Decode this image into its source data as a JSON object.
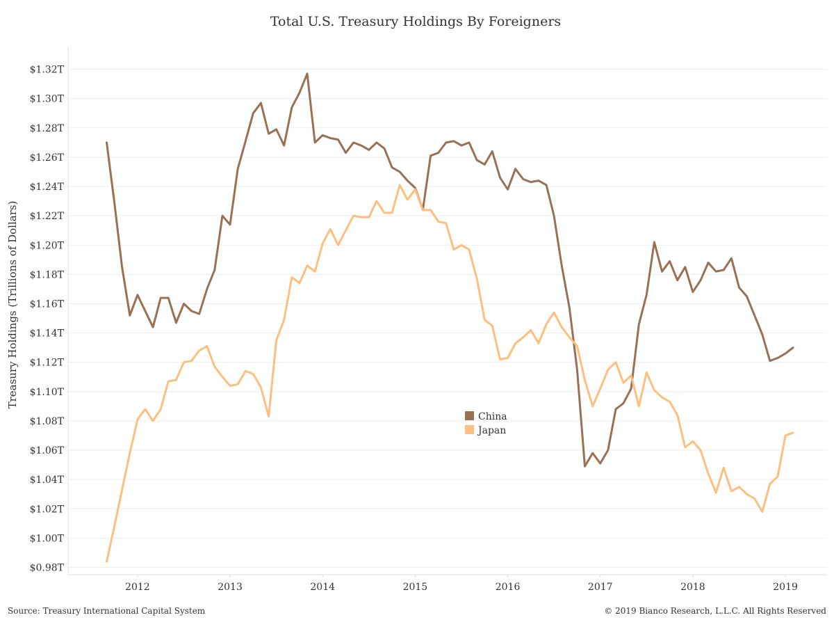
{
  "chart_data": {
    "type": "line",
    "title": "Total U.S. Treasury Holdings By Foreigners",
    "ylabel": "Treasury Holdings (Trillions of Dollars)",
    "xlabel": "",
    "ylim": [
      0.975,
      1.335
    ],
    "xlim": [
      2011.25,
      2019.45
    ],
    "yticks": [
      0.98,
      1.0,
      1.02,
      1.04,
      1.06,
      1.08,
      1.1,
      1.12,
      1.14,
      1.16,
      1.18,
      1.2,
      1.22,
      1.24,
      1.26,
      1.28,
      1.3,
      1.32
    ],
    "ytick_labels": [
      "$0.98T",
      "$1.00T",
      "$1.02T",
      "$1.04T",
      "$1.06T",
      "$1.08T",
      "$1.10T",
      "$1.12T",
      "$1.14T",
      "$1.16T",
      "$1.18T",
      "$1.20T",
      "$1.22T",
      "$1.24T",
      "$1.26T",
      "$1.28T",
      "$1.30T",
      "$1.32T"
    ],
    "xticks": [
      2012,
      2013,
      2014,
      2015,
      2016,
      2017,
      2018,
      2019
    ],
    "xtick_labels": [
      "2012",
      "2013",
      "2014",
      "2015",
      "2016",
      "2017",
      "2018",
      "2019"
    ],
    "grid": true,
    "legend_position": "center",
    "series": [
      {
        "name": "China",
        "color": "#9a7055",
        "x": [
          2011.667,
          2011.75,
          2011.833,
          2011.917,
          2012.0,
          2012.083,
          2012.167,
          2012.25,
          2012.333,
          2012.417,
          2012.5,
          2012.583,
          2012.667,
          2012.75,
          2012.833,
          2012.917,
          2013.0,
          2013.083,
          2013.167,
          2013.25,
          2013.333,
          2013.417,
          2013.5,
          2013.583,
          2013.667,
          2013.75,
          2013.833,
          2013.917,
          2014.0,
          2014.083,
          2014.167,
          2014.25,
          2014.333,
          2014.417,
          2014.5,
          2014.583,
          2014.667,
          2014.75,
          2014.833,
          2014.917,
          2015.0,
          2015.083,
          2015.167,
          2015.25,
          2015.333,
          2015.417,
          2015.5,
          2015.583,
          2015.667,
          2015.75,
          2015.833,
          2015.917,
          2016.0,
          2016.083,
          2016.167,
          2016.25,
          2016.333,
          2016.417,
          2016.5,
          2016.583,
          2016.667,
          2016.75,
          2016.833,
          2016.917,
          2017.0,
          2017.083,
          2017.167,
          2017.25,
          2017.333,
          2017.417,
          2017.5,
          2017.583,
          2017.667,
          2017.75,
          2017.833,
          2017.917,
          2018.0,
          2018.083,
          2018.167,
          2018.25,
          2018.333,
          2018.417,
          2018.5,
          2018.583,
          2018.667,
          2018.75,
          2018.833,
          2018.917,
          2019.0,
          2019.083
        ],
        "values": [
          1.27,
          1.229,
          1.185,
          1.152,
          1.166,
          1.155,
          1.144,
          1.164,
          1.164,
          1.147,
          1.16,
          1.155,
          1.153,
          1.17,
          1.183,
          1.22,
          1.214,
          1.252,
          1.271,
          1.29,
          1.297,
          1.276,
          1.279,
          1.268,
          1.294,
          1.304,
          1.317,
          1.27,
          1.275,
          1.273,
          1.272,
          1.263,
          1.27,
          1.268,
          1.265,
          1.27,
          1.266,
          1.253,
          1.25,
          1.244,
          1.239,
          1.224,
          1.261,
          1.263,
          1.27,
          1.271,
          1.268,
          1.27,
          1.258,
          1.255,
          1.264,
          1.246,
          1.238,
          1.252,
          1.245,
          1.243,
          1.244,
          1.241,
          1.22,
          1.186,
          1.157,
          1.115,
          1.049,
          1.058,
          1.051,
          1.06,
          1.088,
          1.092,
          1.102,
          1.146,
          1.166,
          1.202,
          1.182,
          1.189,
          1.176,
          1.185,
          1.168,
          1.176,
          1.188,
          1.182,
          1.183,
          1.191,
          1.171,
          1.165,
          1.152,
          1.139,
          1.121,
          1.123,
          1.126,
          1.13
        ]
      },
      {
        "name": "Japan",
        "color": "#fcbf80",
        "x": [
          2011.667,
          2011.75,
          2011.833,
          2011.917,
          2012.0,
          2012.083,
          2012.167,
          2012.25,
          2012.333,
          2012.417,
          2012.5,
          2012.583,
          2012.667,
          2012.75,
          2012.833,
          2012.917,
          2013.0,
          2013.083,
          2013.167,
          2013.25,
          2013.333,
          2013.417,
          2013.5,
          2013.583,
          2013.667,
          2013.75,
          2013.833,
          2013.917,
          2014.0,
          2014.083,
          2014.167,
          2014.25,
          2014.333,
          2014.417,
          2014.5,
          2014.583,
          2014.667,
          2014.75,
          2014.833,
          2014.917,
          2015.0,
          2015.083,
          2015.167,
          2015.25,
          2015.333,
          2015.417,
          2015.5,
          2015.583,
          2015.667,
          2015.75,
          2015.833,
          2015.917,
          2016.0,
          2016.083,
          2016.167,
          2016.25,
          2016.333,
          2016.417,
          2016.5,
          2016.583,
          2016.667,
          2016.75,
          2016.833,
          2016.917,
          2017.0,
          2017.083,
          2017.167,
          2017.25,
          2017.333,
          2017.417,
          2017.5,
          2017.583,
          2017.667,
          2017.75,
          2017.833,
          2017.917,
          2018.0,
          2018.083,
          2018.167,
          2018.25,
          2018.333,
          2018.417,
          2018.5,
          2018.583,
          2018.667,
          2018.75,
          2018.833,
          2018.917,
          2019.0,
          2019.083
        ],
        "values": [
          0.984,
          1.008,
          1.033,
          1.058,
          1.081,
          1.088,
          1.08,
          1.088,
          1.107,
          1.108,
          1.12,
          1.121,
          1.128,
          1.131,
          1.117,
          1.11,
          1.104,
          1.105,
          1.114,
          1.112,
          1.103,
          1.083,
          1.135,
          1.149,
          1.178,
          1.174,
          1.186,
          1.182,
          1.201,
          1.211,
          1.2,
          1.21,
          1.22,
          1.219,
          1.219,
          1.23,
          1.222,
          1.222,
          1.241,
          1.231,
          1.238,
          1.224,
          1.224,
          1.216,
          1.215,
          1.197,
          1.2,
          1.197,
          1.177,
          1.149,
          1.145,
          1.122,
          1.123,
          1.133,
          1.137,
          1.142,
          1.133,
          1.146,
          1.154,
          1.144,
          1.137,
          1.131,
          1.108,
          1.09,
          1.102,
          1.115,
          1.12,
          1.106,
          1.111,
          1.09,
          1.113,
          1.101,
          1.096,
          1.093,
          1.084,
          1.062,
          1.066,
          1.06,
          1.044,
          1.031,
          1.048,
          1.032,
          1.035,
          1.03,
          1.027,
          1.018,
          1.037,
          1.042,
          1.07,
          1.072
        ]
      }
    ]
  },
  "footer": {
    "source": "Source: Treasury International Capital System",
    "copyright": "© 2019 Bianco Research, L.L.C. All Rights Reserved"
  }
}
